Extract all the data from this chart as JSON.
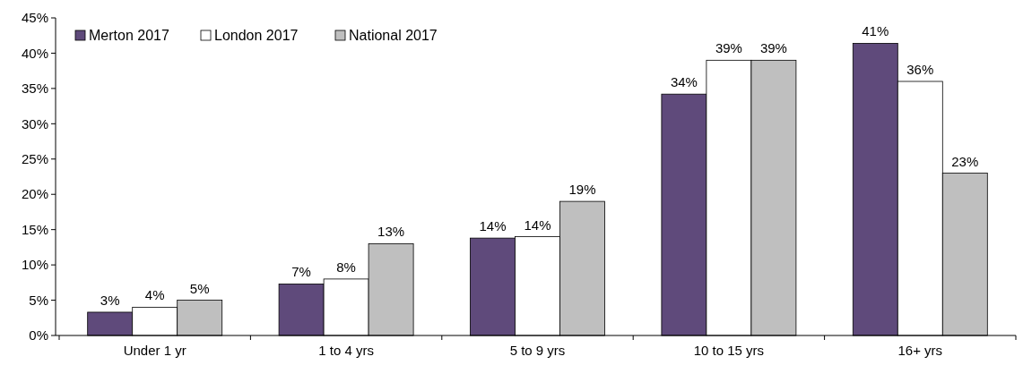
{
  "chart_data": {
    "type": "bar",
    "categories": [
      "Under 1 yr",
      "1 to 4 yrs",
      "5 to 9 yrs",
      "10 to 15 yrs",
      "16+ yrs"
    ],
    "series": [
      {
        "name": "Merton 2017",
        "color": "#5f4a7b",
        "values": [
          3.3,
          7.3,
          13.8,
          34.2,
          41.4
        ],
        "value_labels": [
          "3%",
          "7%",
          "14%",
          "34%",
          "41%"
        ]
      },
      {
        "name": "London 2017",
        "color": "#ffffff",
        "values": [
          4,
          8,
          14,
          39,
          36
        ],
        "value_labels": [
          "4%",
          "8%",
          "14%",
          "39%",
          "36%"
        ]
      },
      {
        "name": "National 2017",
        "color": "#bfbfbf",
        "values": [
          5,
          13,
          19,
          39,
          23
        ],
        "value_labels": [
          "5%",
          "13%",
          "19%",
          "39%",
          "23%"
        ]
      }
    ],
    "ylim": [
      0,
      45
    ],
    "yticks": [
      {
        "value": 0,
        "label": "0%"
      },
      {
        "value": 5,
        "label": "5%"
      },
      {
        "value": 10,
        "label": "10%"
      },
      {
        "value": 15,
        "label": "15%"
      },
      {
        "value": 20,
        "label": "20%"
      },
      {
        "value": 25,
        "label": "25%"
      },
      {
        "value": 30,
        "label": "30%"
      },
      {
        "value": 35,
        "label": "35%"
      },
      {
        "value": 40,
        "label": "40%"
      },
      {
        "value": 45,
        "label": "45%"
      }
    ],
    "legend": "top left",
    "grid": false
  }
}
